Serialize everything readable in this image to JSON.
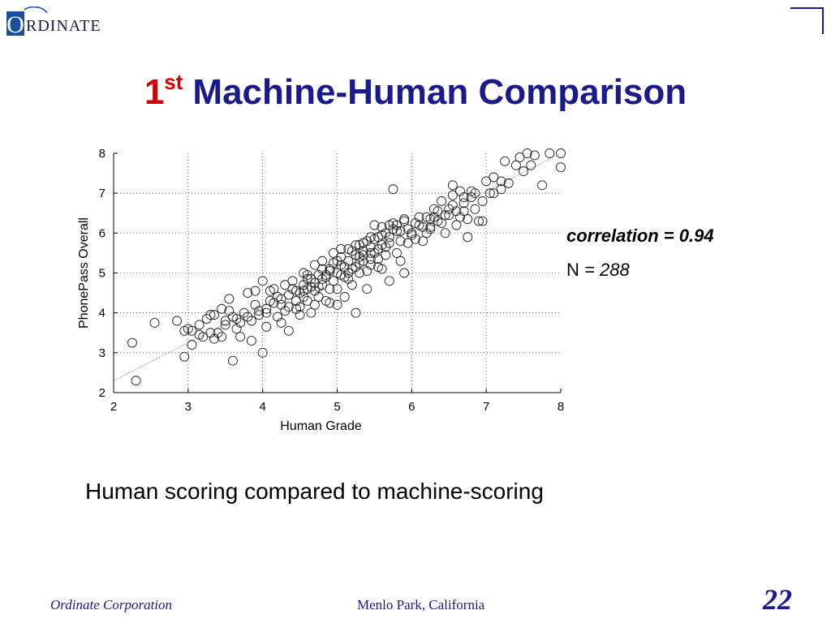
{
  "header": {
    "logo_text": "RDINATE",
    "logo_initial": "O"
  },
  "title": {
    "number": "1",
    "superscript": "st",
    "text": "Machine-Human Comparison"
  },
  "stats": {
    "correlation_label": "correlation = 0.94",
    "n_label": "N",
    "n_value": "= 288"
  },
  "caption": "Human scoring compared to machine-scoring",
  "footer": {
    "company": "Ordinate Corporation",
    "location": "Menlo Park, California",
    "page": "22"
  },
  "colors": {
    "title_blue": "#1a1a8c",
    "title_red": "#d40000",
    "logo_blue": "#1a4fa0"
  },
  "chart_data": {
    "type": "scatter",
    "xlabel": "Human Grade",
    "ylabel": "PhonePass Overall",
    "xlim": [
      2,
      8
    ],
    "ylim": [
      2,
      8
    ],
    "xticks": [
      "2",
      "3",
      "4",
      "5",
      "6",
      "7",
      "8"
    ],
    "yticks": [
      "2",
      "3",
      "4",
      "5",
      "6",
      "7",
      "8"
    ],
    "grid": true,
    "reference_line": [
      [
        2,
        2.3
      ],
      [
        8,
        8
      ]
    ],
    "points": [
      [
        2.25,
        3.25
      ],
      [
        2.3,
        2.3
      ],
      [
        2.55,
        3.75
      ],
      [
        2.85,
        3.8
      ],
      [
        2.95,
        3.55
      ],
      [
        2.95,
        2.9
      ],
      [
        3.0,
        3.6
      ],
      [
        3.05,
        3.2
      ],
      [
        3.15,
        3.7
      ],
      [
        3.2,
        3.4
      ],
      [
        3.3,
        3.95
      ],
      [
        3.35,
        3.35
      ],
      [
        3.4,
        3.5
      ],
      [
        3.45,
        3.4
      ],
      [
        3.5,
        3.8
      ],
      [
        3.55,
        4.35
      ],
      [
        3.55,
        4.05
      ],
      [
        3.6,
        2.8
      ],
      [
        3.65,
        3.85
      ],
      [
        3.7,
        3.4
      ],
      [
        3.75,
        4.0
      ],
      [
        3.8,
        4.5
      ],
      [
        3.85,
        3.8
      ],
      [
        3.85,
        3.3
      ],
      [
        3.9,
        4.55
      ],
      [
        3.95,
        3.95
      ],
      [
        4.0,
        4.8
      ],
      [
        4.0,
        3.0
      ],
      [
        4.05,
        4.1
      ],
      [
        4.05,
        3.65
      ],
      [
        4.1,
        4.3
      ],
      [
        4.15,
        4.6
      ],
      [
        4.2,
        3.9
      ],
      [
        4.25,
        4.2
      ],
      [
        4.25,
        3.75
      ],
      [
        4.3,
        4.05
      ],
      [
        4.35,
        3.55
      ],
      [
        4.35,
        4.45
      ],
      [
        4.4,
        4.8
      ],
      [
        4.45,
        4.1
      ],
      [
        4.5,
        4.5
      ],
      [
        4.5,
        3.95
      ],
      [
        4.55,
        4.7
      ],
      [
        4.55,
        5.0
      ],
      [
        4.6,
        4.3
      ],
      [
        4.6,
        4.6
      ],
      [
        4.65,
        4.85
      ],
      [
        4.65,
        4.0
      ],
      [
        4.7,
        5.2
      ],
      [
        4.7,
        4.55
      ],
      [
        4.75,
        4.4
      ],
      [
        4.75,
        4.95
      ],
      [
        4.8,
        4.7
      ],
      [
        4.8,
        5.3
      ],
      [
        4.85,
        4.9
      ],
      [
        4.85,
        4.3
      ],
      [
        4.9,
        5.1
      ],
      [
        4.9,
        4.6
      ],
      [
        4.95,
        5.5
      ],
      [
        4.95,
        4.8
      ],
      [
        5.0,
        5.0
      ],
      [
        5.0,
        4.6
      ],
      [
        5.05,
        5.4
      ],
      [
        5.05,
        5.2
      ],
      [
        5.1,
        4.9
      ],
      [
        5.1,
        4.4
      ],
      [
        5.15,
        5.3
      ],
      [
        5.15,
        5.6
      ],
      [
        5.2,
        5.1
      ],
      [
        5.2,
        4.7
      ],
      [
        5.25,
        5.45
      ],
      [
        5.25,
        4.0
      ],
      [
        5.3,
        5.7
      ],
      [
        5.3,
        5.0
      ],
      [
        5.35,
        5.3
      ],
      [
        5.35,
        5.55
      ],
      [
        5.4,
        5.8
      ],
      [
        5.4,
        4.6
      ],
      [
        5.45,
        5.2
      ],
      [
        5.45,
        5.65
      ],
      [
        5.5,
        5.5
      ],
      [
        5.5,
        6.2
      ],
      [
        5.55,
        5.35
      ],
      [
        5.55,
        5.9
      ],
      [
        5.6,
        5.1
      ],
      [
        5.6,
        5.7
      ],
      [
        5.65,
        5.45
      ],
      [
        5.65,
        6.0
      ],
      [
        5.7,
        4.8
      ],
      [
        5.7,
        5.75
      ],
      [
        5.75,
        6.1
      ],
      [
        5.75,
        7.1
      ],
      [
        5.8,
        5.5
      ],
      [
        5.8,
        6.05
      ],
      [
        5.85,
        5.3
      ],
      [
        5.85,
        5.8
      ],
      [
        5.9,
        6.3
      ],
      [
        5.9,
        5.0
      ],
      [
        5.95,
        5.75
      ],
      [
        6.0,
        6.0
      ],
      [
        6.05,
        5.85
      ],
      [
        6.1,
        6.2
      ],
      [
        6.15,
        5.8
      ],
      [
        6.2,
        6.4
      ],
      [
        6.25,
        6.1
      ],
      [
        6.3,
        6.6
      ],
      [
        6.35,
        6.3
      ],
      [
        6.4,
        6.8
      ],
      [
        6.45,
        6.0
      ],
      [
        6.5,
        6.45
      ],
      [
        6.55,
        6.7
      ],
      [
        6.55,
        7.2
      ],
      [
        6.6,
        6.2
      ],
      [
        6.65,
        7.05
      ],
      [
        6.7,
        6.55
      ],
      [
        6.75,
        5.9
      ],
      [
        6.75,
        6.35
      ],
      [
        6.8,
        6.9
      ],
      [
        6.85,
        7.0
      ],
      [
        6.9,
        6.3
      ],
      [
        6.95,
        6.8
      ],
      [
        7.0,
        7.3
      ],
      [
        7.05,
        7.0
      ],
      [
        7.1,
        7.4
      ],
      [
        7.2,
        7.1
      ],
      [
        7.25,
        7.8
      ],
      [
        7.3,
        7.25
      ],
      [
        7.4,
        7.7
      ],
      [
        7.45,
        7.9
      ],
      [
        7.5,
        7.55
      ],
      [
        7.55,
        8.0
      ],
      [
        7.6,
        7.7
      ],
      [
        7.65,
        7.95
      ],
      [
        7.75,
        7.2
      ],
      [
        7.85,
        8.0
      ],
      [
        8.0,
        8.0
      ],
      [
        8.0,
        7.65
      ],
      [
        3.25,
        3.85
      ],
      [
        3.45,
        4.1
      ],
      [
        3.65,
        3.6
      ],
      [
        3.9,
        4.2
      ],
      [
        4.15,
        4.25
      ],
      [
        4.3,
        4.7
      ],
      [
        4.45,
        4.3
      ],
      [
        4.6,
        4.95
      ],
      [
        4.75,
        4.65
      ],
      [
        4.9,
        4.25
      ],
      [
        5.0,
        4.2
      ],
      [
        5.1,
        5.15
      ],
      [
        5.2,
        5.55
      ],
      [
        5.3,
        5.25
      ],
      [
        5.4,
        5.05
      ],
      [
        5.5,
        5.85
      ],
      [
        5.6,
        5.95
      ],
      [
        5.7,
        6.2
      ],
      [
        5.9,
        6.35
      ],
      [
        6.05,
        6.25
      ],
      [
        6.2,
        6.0
      ],
      [
        6.3,
        6.4
      ],
      [
        6.45,
        6.45
      ],
      [
        6.6,
        6.55
      ],
      [
        6.7,
        6.9
      ],
      [
        6.85,
        6.6
      ],
      [
        6.95,
        6.3
      ],
      [
        7.1,
        7.0
      ],
      [
        7.2,
        7.3
      ],
      [
        4.55,
        4.55
      ],
      [
        4.65,
        4.65
      ],
      [
        4.7,
        4.75
      ],
      [
        4.8,
        4.85
      ],
      [
        4.9,
        5.05
      ],
      [
        5.05,
        4.95
      ],
      [
        5.15,
        4.85
      ],
      [
        5.25,
        5.15
      ],
      [
        5.35,
        5.45
      ],
      [
        5.45,
        5.35
      ],
      [
        5.55,
        5.6
      ],
      [
        5.65,
        5.65
      ],
      [
        4.35,
        4.15
      ],
      [
        4.5,
        4.15
      ],
      [
        4.2,
        4.4
      ],
      [
        4.05,
        4.0
      ],
      [
        3.8,
        3.9
      ],
      [
        3.7,
        3.75
      ],
      [
        3.5,
        3.7
      ],
      [
        3.35,
        3.95
      ],
      [
        3.15,
        3.45
      ],
      [
        4.4,
        4.6
      ],
      [
        4.55,
        4.4
      ],
      [
        4.7,
        4.2
      ],
      [
        4.8,
        5.1
      ],
      [
        4.95,
        5.25
      ],
      [
        5.05,
        5.6
      ],
      [
        5.25,
        5.7
      ],
      [
        5.35,
        5.75
      ],
      [
        5.45,
        5.9
      ],
      [
        5.6,
        6.15
      ],
      [
        5.75,
        6.25
      ],
      [
        5.85,
        6.05
      ],
      [
        6.0,
        5.95
      ],
      [
        6.15,
        6.15
      ],
      [
        6.25,
        6.15
      ],
      [
        6.35,
        6.55
      ],
      [
        6.5,
        6.6
      ],
      [
        6.65,
        6.4
      ],
      [
        6.8,
        7.05
      ],
      [
        3.05,
        3.55
      ],
      [
        3.3,
        3.5
      ],
      [
        3.6,
        3.9
      ],
      [
        3.95,
        4.05
      ],
      [
        4.1,
        4.55
      ],
      [
        4.25,
        4.35
      ],
      [
        4.45,
        4.55
      ],
      [
        4.6,
        4.85
      ],
      [
        4.85,
        4.95
      ],
      [
        5.0,
        5.3
      ],
      [
        5.15,
        5.0
      ],
      [
        5.3,
        5.4
      ],
      [
        5.45,
        5.5
      ],
      [
        5.55,
        5.15
      ],
      [
        5.7,
        5.9
      ],
      [
        5.8,
        6.2
      ],
      [
        5.95,
        6.1
      ],
      [
        6.1,
        6.4
      ],
      [
        6.25,
        6.35
      ],
      [
        6.4,
        6.25
      ],
      [
        6.55,
        6.95
      ],
      [
        6.7,
        6.75
      ]
    ]
  }
}
